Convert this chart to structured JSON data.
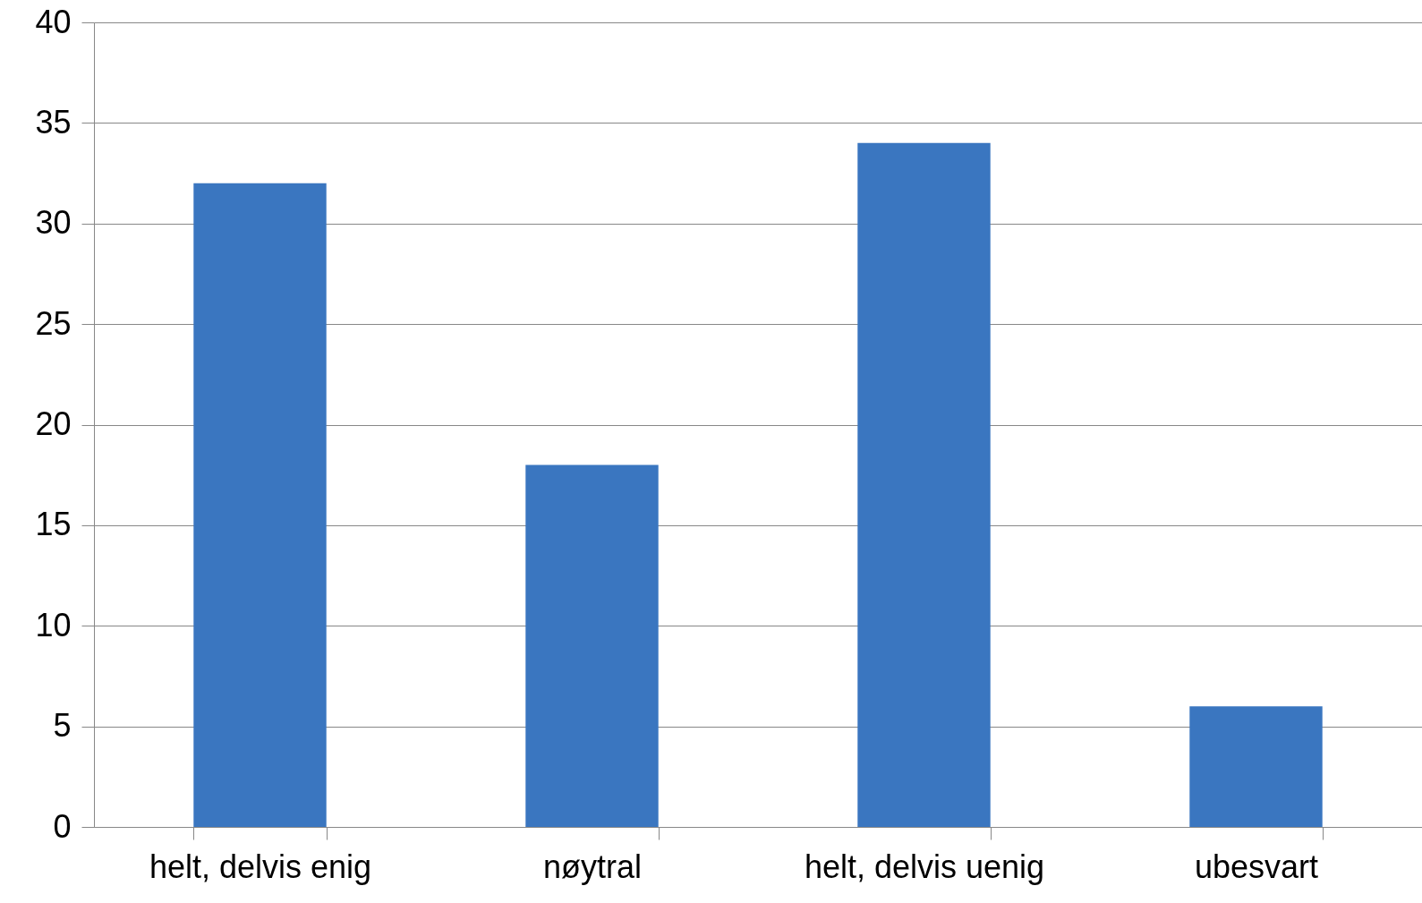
{
  "chart_data": {
    "type": "bar",
    "categories": [
      "helt, delvis enig",
      "nøytral",
      "helt, delvis uenig",
      "ubesvart"
    ],
    "values": [
      32,
      18,
      34,
      6
    ],
    "color": "#3a76c0",
    "ylim": [
      0,
      40
    ],
    "yticks": [
      0,
      5,
      10,
      15,
      20,
      25,
      30,
      35,
      40
    ],
    "grid": "y"
  }
}
